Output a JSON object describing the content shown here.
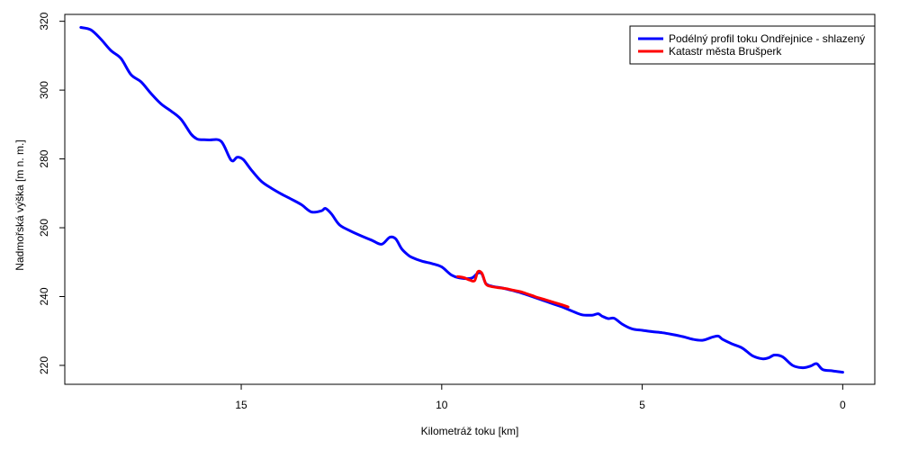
{
  "chart_data": {
    "type": "line",
    "xlabel": "Kilometráž toku [km]",
    "ylabel": "Nadmořská výška [m n. m.]",
    "xlim": [
      19.4,
      -0.8
    ],
    "ylim": [
      214.5,
      322
    ],
    "x_reversed": true,
    "x_ticks": [
      15,
      10,
      5,
      0
    ],
    "y_ticks": [
      220,
      240,
      260,
      280,
      300,
      320
    ],
    "grid": false,
    "legend_position": "top-right",
    "series": [
      {
        "name": "Podélný profil toku Ondřejnice - shlazený",
        "color": "#0000ff",
        "x": [
          19.0,
          18.75,
          18.5,
          18.25,
          18.0,
          17.75,
          17.5,
          17.25,
          17.0,
          16.75,
          16.5,
          16.25,
          16.1,
          16.0,
          15.8,
          15.5,
          15.25,
          15.1,
          14.95,
          14.75,
          14.5,
          14.25,
          14.0,
          13.75,
          13.5,
          13.25,
          13.0,
          12.9,
          12.75,
          12.6,
          12.5,
          12.25,
          12.0,
          11.75,
          11.5,
          11.3,
          11.15,
          11.0,
          10.85,
          10.75,
          10.5,
          10.25,
          10.0,
          9.75,
          9.5,
          9.25,
          9.1,
          9.0,
          8.9,
          8.75,
          8.5,
          8.25,
          8.0,
          7.75,
          7.5,
          7.25,
          7.0,
          6.75,
          6.5,
          6.25,
          6.1,
          6.0,
          5.85,
          5.7,
          5.5,
          5.25,
          5.0,
          4.75,
          4.5,
          4.25,
          4.0,
          3.75,
          3.5,
          3.25,
          3.1,
          3.0,
          2.75,
          2.5,
          2.25,
          2.0,
          1.85,
          1.7,
          1.5,
          1.25,
          1.0,
          0.8,
          0.65,
          0.5,
          0.25,
          0.0
        ],
        "y": [
          318.2,
          317.5,
          314.8,
          311.5,
          309.2,
          304.5,
          302.4,
          299.0,
          296.0,
          293.9,
          291.5,
          287.2,
          285.8,
          285.6,
          285.5,
          285.1,
          279.6,
          280.5,
          279.8,
          276.8,
          273.5,
          271.5,
          269.8,
          268.3,
          266.7,
          264.6,
          264.9,
          265.6,
          264.0,
          261.5,
          260.4,
          258.9,
          257.6,
          256.4,
          255.2,
          257.2,
          256.8,
          253.9,
          252.2,
          251.4,
          250.3,
          249.6,
          248.6,
          246.2,
          245.3,
          245.4,
          246.8,
          246.6,
          243.8,
          243.0,
          242.5,
          241.8,
          241.0,
          240.0,
          239.0,
          238.0,
          237.0,
          235.8,
          234.7,
          234.6,
          235.0,
          234.3,
          233.6,
          233.7,
          232.0,
          230.6,
          230.2,
          229.8,
          229.5,
          229.0,
          228.4,
          227.6,
          227.3,
          228.2,
          228.5,
          227.6,
          226.2,
          225.0,
          222.8,
          221.9,
          222.2,
          223.0,
          222.5,
          220.0,
          219.3,
          219.8,
          220.5,
          218.8,
          218.4,
          218.0
        ]
      },
      {
        "name": "Katastr města Brušperk",
        "color": "#ff0000",
        "x": [
          9.6,
          9.45,
          9.3,
          9.18,
          9.1,
          9.0,
          8.9,
          8.8,
          8.6,
          8.4,
          8.2,
          8.0,
          7.8,
          7.6,
          7.4,
          7.2,
          7.0,
          6.85
        ],
        "y": [
          245.8,
          245.5,
          244.8,
          244.6,
          247.2,
          246.8,
          243.7,
          243.0,
          242.6,
          242.3,
          241.8,
          241.3,
          240.5,
          239.7,
          239.0,
          238.3,
          237.6,
          237.0
        ]
      }
    ]
  }
}
